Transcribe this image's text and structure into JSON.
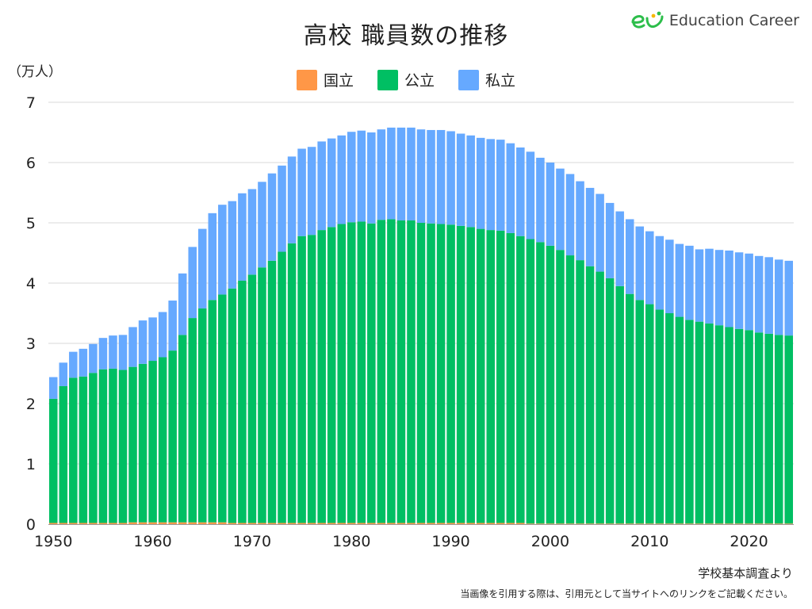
{
  "title": "高校 職員数の推移",
  "logo_text": "Education Career",
  "unit_label": "（万人）",
  "source_note": "学校基本調査より",
  "citation_note": "当画像を引用する際は、引用元として当サイトへのリンクをご記載ください。",
  "colors": {
    "national": "#FF9747",
    "public": "#00BF63",
    "private": "#66A9FF",
    "grid": "#D9D9D9",
    "logo": "#2DBE4B"
  },
  "chart_data": {
    "type": "bar",
    "stacked": true,
    "title": "高校 職員数の推移",
    "ylabel": "（万人）",
    "ylim": [
      0,
      7
    ],
    "yticks": [
      0,
      1,
      2,
      3,
      4,
      5,
      6,
      7
    ],
    "xticks": [
      1950,
      1960,
      1970,
      1980,
      1990,
      2000,
      2010,
      2020
    ],
    "grid": true,
    "legend_position": "top-center",
    "x": [
      1950,
      1951,
      1952,
      1953,
      1954,
      1955,
      1956,
      1957,
      1958,
      1959,
      1960,
      1961,
      1962,
      1963,
      1964,
      1965,
      1966,
      1967,
      1968,
      1969,
      1970,
      1971,
      1972,
      1973,
      1974,
      1975,
      1976,
      1977,
      1978,
      1979,
      1980,
      1981,
      1982,
      1983,
      1984,
      1985,
      1986,
      1987,
      1988,
      1989,
      1990,
      1991,
      1992,
      1993,
      1994,
      1995,
      1996,
      1997,
      1998,
      1999,
      2000,
      2001,
      2002,
      2003,
      2004,
      2005,
      2006,
      2007,
      2008,
      2009,
      2010,
      2011,
      2012,
      2013,
      2014,
      2015,
      2016,
      2017,
      2018,
      2019,
      2020,
      2021,
      2022,
      2023,
      2024
    ],
    "series": [
      {
        "name": "国立",
        "key": "national",
        "values": [
          0.02,
          0.02,
          0.02,
          0.02,
          0.02,
          0.02,
          0.02,
          0.02,
          0.03,
          0.03,
          0.03,
          0.03,
          0.03,
          0.03,
          0.03,
          0.03,
          0.03,
          0.03,
          0.02,
          0.02,
          0.02,
          0.02,
          0.02,
          0.02,
          0.02,
          0.02,
          0.02,
          0.02,
          0.02,
          0.02,
          0.02,
          0.02,
          0.02,
          0.02,
          0.02,
          0.02,
          0.02,
          0.02,
          0.02,
          0.02,
          0.02,
          0.02,
          0.02,
          0.02,
          0.02,
          0.02,
          0.02,
          0.02,
          0.01,
          0.01,
          0.01,
          0.01,
          0.01,
          0.01,
          0.01,
          0.01,
          0.01,
          0.01,
          0.01,
          0.01,
          0.01,
          0.01,
          0.01,
          0.01,
          0.01,
          0.01,
          0.01,
          0.01,
          0.01,
          0.01,
          0.01,
          0.01,
          0.01,
          0.01,
          0.01
        ]
      },
      {
        "name": "公立",
        "key": "public",
        "values": [
          2.06,
          2.27,
          2.41,
          2.43,
          2.49,
          2.55,
          2.56,
          2.54,
          2.58,
          2.63,
          2.68,
          2.74,
          2.85,
          3.11,
          3.39,
          3.55,
          3.69,
          3.78,
          3.89,
          4.02,
          4.12,
          4.24,
          4.35,
          4.5,
          4.64,
          4.76,
          4.78,
          4.86,
          4.91,
          4.96,
          4.99,
          5.0,
          4.97,
          5.03,
          5.04,
          5.02,
          5.02,
          4.98,
          4.97,
          4.96,
          4.95,
          4.93,
          4.91,
          4.88,
          4.86,
          4.85,
          4.81,
          4.76,
          4.72,
          4.67,
          4.61,
          4.54,
          4.45,
          4.37,
          4.27,
          4.18,
          4.07,
          3.94,
          3.81,
          3.71,
          3.64,
          3.55,
          3.49,
          3.43,
          3.38,
          3.35,
          3.32,
          3.29,
          3.26,
          3.23,
          3.21,
          3.17,
          3.15,
          3.13,
          3.12
        ]
      },
      {
        "name": "私立",
        "key": "private",
        "values": [
          0.36,
          0.39,
          0.43,
          0.46,
          0.48,
          0.52,
          0.55,
          0.58,
          0.66,
          0.72,
          0.72,
          0.75,
          0.83,
          1.02,
          1.18,
          1.32,
          1.44,
          1.49,
          1.45,
          1.45,
          1.42,
          1.42,
          1.45,
          1.43,
          1.44,
          1.45,
          1.46,
          1.47,
          1.47,
          1.47,
          1.5,
          1.51,
          1.51,
          1.5,
          1.52,
          1.54,
          1.54,
          1.55,
          1.55,
          1.56,
          1.55,
          1.53,
          1.52,
          1.51,
          1.51,
          1.51,
          1.49,
          1.47,
          1.45,
          1.4,
          1.38,
          1.35,
          1.35,
          1.31,
          1.3,
          1.29,
          1.25,
          1.24,
          1.24,
          1.22,
          1.21,
          1.22,
          1.22,
          1.21,
          1.23,
          1.2,
          1.24,
          1.25,
          1.27,
          1.27,
          1.27,
          1.27,
          1.27,
          1.25,
          1.24
        ]
      }
    ]
  }
}
